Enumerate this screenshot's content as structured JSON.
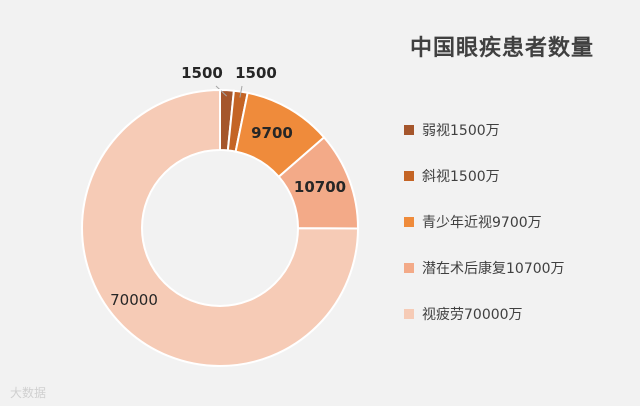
{
  "chart_data": {
    "type": "pie",
    "title": "中国眼疾患者数量",
    "categories": [
      "弱视1500万",
      "斜视1500万",
      "青少年近视9700万",
      "潜在术后康复10700万",
      "视疲劳70000万"
    ],
    "values": [
      1500,
      1500,
      9700,
      10700,
      70000
    ],
    "data_labels": [
      "1500",
      "1500",
      "9700",
      "10700",
      "70000"
    ],
    "colors": [
      "#a5562c",
      "#c46425",
      "#ef8b3b",
      "#f3aa88",
      "#f6cbb6"
    ],
    "legend": "right",
    "donut": true
  },
  "watermark": "大数据"
}
